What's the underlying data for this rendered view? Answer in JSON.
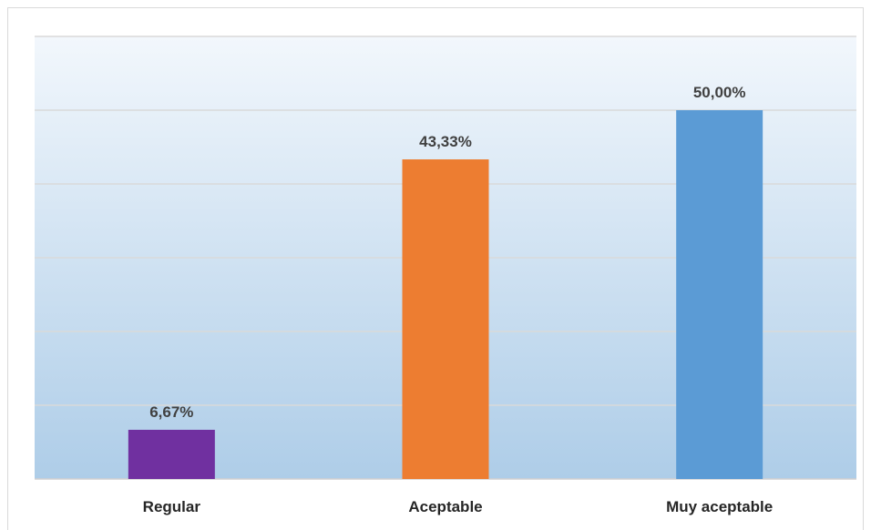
{
  "chart_data": {
    "type": "bar",
    "categories": [
      "Regular",
      "Aceptable",
      "Muy aceptable"
    ],
    "values": [
      6.67,
      43.33,
      50.0
    ],
    "data_labels": [
      "6,67%",
      "43,33%",
      "50,00%"
    ],
    "ylim": [
      0,
      60
    ],
    "grid": true,
    "colors": [
      "#7030a0",
      "#ed7d31",
      "#5b9bd5"
    ],
    "background_gradient": [
      "#f2f7fc",
      "#aecde8"
    ]
  }
}
